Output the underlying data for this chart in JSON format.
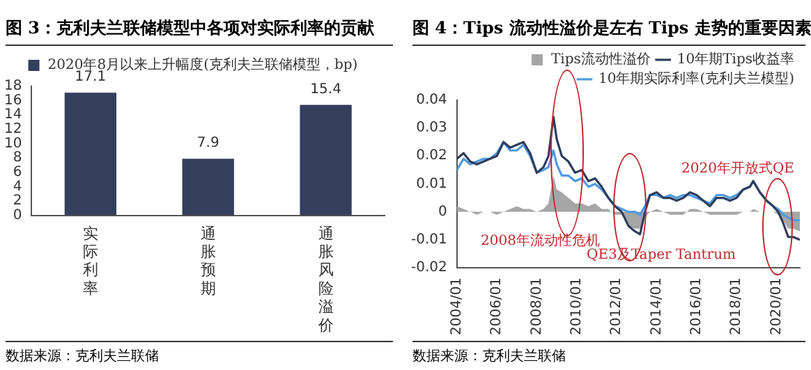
{
  "chart_data": [
    {
      "type": "bar",
      "title": "图 3：克利夫兰联储模型中各项对实际利率的贡献",
      "categories": [
        "实际利率",
        "通胀预期",
        "通胀风险溢价"
      ],
      "series": [
        {
          "name": "2020年8月以来上升幅度(克利夫兰联储模型，bp)",
          "color": "#333f5c",
          "values": [
            17.1,
            7.9,
            15.4
          ]
        }
      ],
      "ylim": [
        0,
        18
      ],
      "yticks": [
        0,
        2,
        4,
        6,
        8,
        10,
        12,
        14,
        16,
        18
      ],
      "data_labels": true,
      "legend": "top",
      "grid": false,
      "annotations": [
        "数据来源：克利夫兰联储"
      ]
    },
    {
      "type": "line",
      "title": "图 4：Tips 流动性溢价是左右 Tips 走势的重要因素",
      "x": [
        "2004-01",
        "2004-05",
        "2004-09",
        "2005-01",
        "2005-05",
        "2005-09",
        "2006-01",
        "2006-05",
        "2006-09",
        "2007-01",
        "2007-05",
        "2007-09",
        "2008-01",
        "2008-05",
        "2008-08",
        "2008-11",
        "2009-01",
        "2009-04",
        "2009-08",
        "2009-12",
        "2010-04",
        "2010-08",
        "2010-12",
        "2011-04",
        "2011-08",
        "2011-12",
        "2012-04",
        "2012-08",
        "2012-12",
        "2013-03",
        "2013-06",
        "2013-09",
        "2014-01",
        "2014-05",
        "2014-09",
        "2015-01",
        "2015-05",
        "2015-09",
        "2016-01",
        "2016-05",
        "2016-09",
        "2017-01",
        "2017-05",
        "2017-09",
        "2018-01",
        "2018-05",
        "2018-09",
        "2018-11",
        "2019-03",
        "2019-07",
        "2019-11",
        "2020-02",
        "2020-05",
        "2020-08",
        "2020-11",
        "2021-03"
      ],
      "series": [
        {
          "name": "Tips流动性溢价",
          "type": "area",
          "color": "#a6a6a6",
          "values": [
            0.002,
            0.001,
            0.0,
            -0.001,
            0.0,
            0.0,
            -0.001,
            0.0,
            0.001,
            0.002,
            0.001,
            0.001,
            0.0,
            0.001,
            0.003,
            0.013,
            0.008,
            0.007,
            0.005,
            0.003,
            0.003,
            0.002,
            0.003,
            0.001,
            0.001,
            -0.001,
            -0.001,
            -0.005,
            -0.006,
            -0.006,
            -0.002,
            0.0,
            0.001,
            0.0,
            -0.001,
            -0.001,
            -0.001,
            0.001,
            0.001,
            0.0,
            -0.001,
            -0.001,
            -0.001,
            -0.001,
            -0.001,
            0.0,
            0.0,
            0.001,
            0.0,
            0.0,
            0.0,
            -0.001,
            -0.003,
            -0.006,
            -0.006,
            -0.007
          ]
        },
        {
          "name": "10年期Tips收益率",
          "color": "#2e3d5c",
          "values": [
            0.019,
            0.021,
            0.018,
            0.017,
            0.018,
            0.019,
            0.02,
            0.025,
            0.023,
            0.024,
            0.025,
            0.021,
            0.014,
            0.016,
            0.02,
            0.034,
            0.026,
            0.02,
            0.018,
            0.014,
            0.015,
            0.011,
            0.012,
            0.009,
            0.005,
            0.002,
            0.0,
            -0.005,
            -0.007,
            -0.008,
            0.0,
            0.006,
            0.007,
            0.005,
            0.005,
            0.004,
            0.005,
            0.007,
            0.006,
            0.004,
            0.002,
            0.005,
            0.005,
            0.004,
            0.005,
            0.008,
            0.009,
            0.011,
            0.007,
            0.004,
            0.002,
            0.0,
            -0.004,
            -0.009,
            -0.009,
            -0.01
          ]
        },
        {
          "name": "10年期实际利率(克利夫兰模型)",
          "color": "#4f9be0",
          "values": [
            0.015,
            0.019,
            0.017,
            0.018,
            0.019,
            0.019,
            0.021,
            0.025,
            0.022,
            0.022,
            0.024,
            0.02,
            0.014,
            0.015,
            0.016,
            0.022,
            0.017,
            0.013,
            0.013,
            0.011,
            0.012,
            0.009,
            0.01,
            0.008,
            0.005,
            0.002,
            0.001,
            0.0,
            0.0,
            -0.001,
            0.002,
            0.006,
            0.006,
            0.005,
            0.006,
            0.005,
            0.006,
            0.006,
            0.005,
            0.004,
            0.003,
            0.006,
            0.006,
            0.005,
            0.006,
            0.008,
            0.009,
            0.011,
            0.007,
            0.004,
            0.002,
            0.001,
            -0.001,
            -0.002,
            -0.003,
            -0.003
          ]
        }
      ],
      "xlim": [
        "2004-01",
        "2021-03"
      ],
      "xticks": [
        {
          "value": "2004-01",
          "label": "2004/01"
        },
        {
          "value": "2006-01",
          "label": "2006/01"
        },
        {
          "value": "2008-01",
          "label": "2008/01"
        },
        {
          "value": "2010-01",
          "label": "2010/01"
        },
        {
          "value": "2012-01",
          "label": "2012/01"
        },
        {
          "value": "2014-01",
          "label": "2014/01"
        },
        {
          "value": "2016-01",
          "label": "2016/01"
        },
        {
          "value": "2018-01",
          "label": "2018/01"
        },
        {
          "value": "2020-01",
          "label": "2020/01"
        }
      ],
      "ylim": [
        -0.02,
        0.04
      ],
      "yticks": [
        -0.02,
        -0.01,
        0,
        0.01,
        0.02,
        0.03,
        0.04
      ],
      "legend": "top right",
      "grid": false,
      "annotations": [
        "2008年流动性危机",
        "QE3及Taper Tantrum",
        "2020年开放式QE",
        "数据来源：克利夫兰联储"
      ]
    }
  ]
}
